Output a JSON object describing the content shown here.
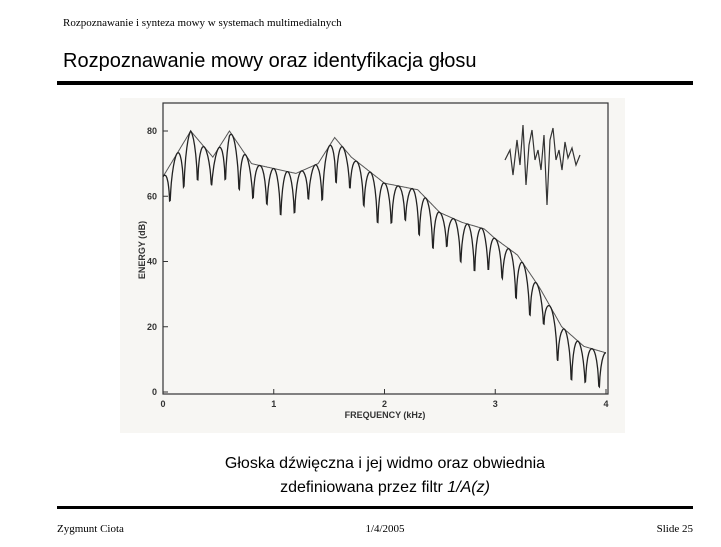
{
  "header": {
    "subtitle": "Rozpoznawanie i synteza mowy w systemach multimedialnych",
    "title": "Rozpoznawanie mowy oraz identyfikacja głosu"
  },
  "figure": {
    "ylabel": "ENERGY (dB)",
    "xlabel": "FREQUENCY (kHz)",
    "yticks": [
      0,
      20,
      40,
      60,
      80
    ],
    "xticks": [
      0,
      1,
      2,
      3,
      4
    ]
  },
  "caption": {
    "line1": "Głoska dźwięczna i jej widmo oraz obwiednia",
    "line2": "zdefiniowana przez filtr ",
    "line2_italic": "1/A(z)"
  },
  "footer": {
    "author": "Zygmunt Ciota",
    "date": "1/4/2005",
    "slide": "Slide  25"
  }
}
